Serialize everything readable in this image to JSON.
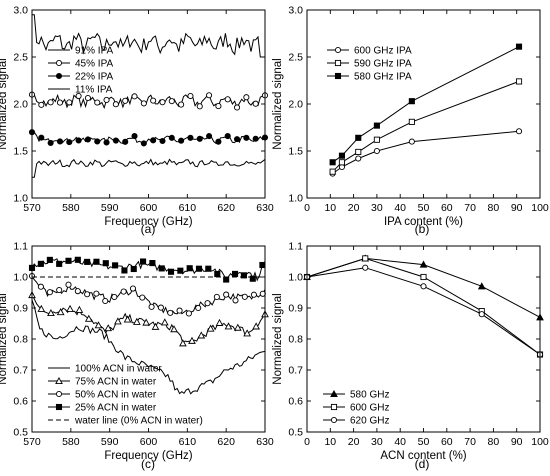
{
  "chart_data": [
    {
      "type": "line",
      "panel_label": "(a)",
      "xlabel": "Frequency (GHz)",
      "ylabel": "Normalized signal",
      "xlim": [
        570,
        630
      ],
      "ylim": [
        1.0,
        3.0
      ],
      "xticks": [
        570,
        580,
        590,
        600,
        610,
        620,
        630
      ],
      "yticks": [
        1.0,
        1.5,
        2.0,
        2.5,
        3.0
      ],
      "yticklabels": [
        "1.0",
        "1.5",
        "2.0",
        "2.5",
        "3.0"
      ],
      "legend_position": "top-left",
      "series": [
        {
          "name": "91% IPA",
          "marker": "none",
          "base": 2.65,
          "amp": 0.09,
          "start_y": 2.95,
          "end_drop": 0.15
        },
        {
          "name": "45% IPA",
          "marker": "open-circle",
          "base": 2.03,
          "amp": 0.05,
          "start_y": 2.1
        },
        {
          "name": "22% IPA",
          "marker": "filled-circle",
          "base": 1.62,
          "amp": 0.03,
          "start_y": 1.7
        },
        {
          "name": "11% IPA",
          "marker": "none",
          "base": 1.37,
          "amp": 0.03,
          "start_y": 1.22
        }
      ]
    },
    {
      "type": "line",
      "panel_label": "(b)",
      "xlabel": "IPA content (%)",
      "ylabel": "Normalized signal",
      "xlim": [
        0,
        100
      ],
      "ylim": [
        1.0,
        3.0
      ],
      "xticks": [
        0,
        10,
        20,
        30,
        40,
        50,
        60,
        70,
        80,
        90,
        100
      ],
      "yticks": [
        1.0,
        1.5,
        2.0,
        2.5,
        3.0
      ],
      "yticklabels": [
        "1.0",
        "1.5",
        "2.0",
        "2.5",
        "3.0"
      ],
      "legend_position": "top-left",
      "x": [
        11,
        15,
        22,
        30,
        45,
        91
      ],
      "series": [
        {
          "name": "600 GHz IPA",
          "marker": "open-circle",
          "values": [
            1.26,
            1.33,
            1.42,
            1.5,
            1.6,
            1.71
          ]
        },
        {
          "name": "590 GHz IPA",
          "marker": "open-square",
          "values": [
            1.28,
            1.38,
            1.49,
            1.62,
            1.81,
            2.24
          ]
        },
        {
          "name": "580 GHz IPA",
          "marker": "filled-square",
          "values": [
            1.38,
            1.45,
            1.64,
            1.77,
            2.03,
            2.61
          ]
        }
      ]
    },
    {
      "type": "line",
      "panel_label": "(c)",
      "xlabel": "Frequency (GHz)",
      "ylabel": "Normalized signal",
      "xlim": [
        570,
        630
      ],
      "ylim": [
        0.5,
        1.1
      ],
      "xticks": [
        570,
        580,
        590,
        600,
        610,
        620,
        630
      ],
      "yticks": [
        0.5,
        0.6,
        0.7,
        0.8,
        0.9,
        1.0,
        1.1
      ],
      "yticklabels": [
        "0.5",
        "0.6",
        "0.7",
        "0.8",
        "0.9",
        "1.0",
        "1.1"
      ],
      "legend_position": "bottom-left",
      "series": [
        {
          "name": "100% ACN in water",
          "marker": "none",
          "points": [
            [
              570,
              0.92
            ],
            [
              572,
              0.83
            ],
            [
              576,
              0.8
            ],
            [
              582,
              0.84
            ],
            [
              588,
              0.82
            ],
            [
              594,
              0.74
            ],
            [
              600,
              0.71
            ],
            [
              605,
              0.68
            ],
            [
              608,
              0.62
            ],
            [
              612,
              0.64
            ],
            [
              616,
              0.66
            ],
            [
              620,
              0.7
            ],
            [
              624,
              0.72
            ],
            [
              628,
              0.75
            ],
            [
              630,
              0.76
            ]
          ]
        },
        {
          "name": "75% ACN in water",
          "marker": "open-triangle",
          "points": [
            [
              570,
              0.95
            ],
            [
              573,
              0.88
            ],
            [
              578,
              0.9
            ],
            [
              584,
              0.88
            ],
            [
              589,
              0.82
            ],
            [
              594,
              0.87
            ],
            [
              600,
              0.85
            ],
            [
              606,
              0.84
            ],
            [
              610,
              0.78
            ],
            [
              616,
              0.83
            ],
            [
              620,
              0.85
            ],
            [
              626,
              0.82
            ],
            [
              630,
              0.88
            ]
          ]
        },
        {
          "name": "50% ACN in water",
          "marker": "open-circle",
          "points": [
            [
              570,
              1.0
            ],
            [
              574,
              0.94
            ],
            [
              580,
              0.97
            ],
            [
              586,
              0.94
            ],
            [
              590,
              0.93
            ],
            [
              596,
              0.96
            ],
            [
              602,
              0.9
            ],
            [
              608,
              0.88
            ],
            [
              614,
              0.91
            ],
            [
              620,
              0.94
            ],
            [
              626,
              0.93
            ],
            [
              630,
              0.96
            ]
          ]
        },
        {
          "name": "25% ACN in water",
          "marker": "filled-square",
          "points": [
            [
              570,
              1.04
            ],
            [
              574,
              1.05
            ],
            [
              580,
              1.05
            ],
            [
              586,
              1.04
            ],
            [
              592,
              1.03
            ],
            [
              598,
              1.04
            ],
            [
              604,
              1.03
            ],
            [
              610,
              1.02
            ],
            [
              616,
              1.03
            ],
            [
              620,
              1.0
            ],
            [
              624,
              1.02
            ],
            [
              628,
              1.0
            ],
            [
              630,
              1.05
            ]
          ]
        },
        {
          "name": "water line (0% ACN in water)",
          "marker": "dashed",
          "points": [
            [
              570,
              1.0
            ],
            [
              630,
              1.0
            ]
          ]
        }
      ]
    },
    {
      "type": "line",
      "panel_label": "(d)",
      "xlabel": "ACN content (%)",
      "ylabel": "Normalized signal",
      "xlim": [
        0,
        100
      ],
      "ylim": [
        0.5,
        1.1
      ],
      "xticks": [
        0,
        10,
        20,
        30,
        40,
        50,
        60,
        70,
        80,
        90,
        100
      ],
      "yticks": [
        0.5,
        0.6,
        0.7,
        0.8,
        0.9,
        1.0,
        1.1
      ],
      "yticklabels": [
        "0.5",
        "0.6",
        "0.7",
        "0.8",
        "0.9",
        "1.0",
        "1.1"
      ],
      "legend_position": "bottom-left",
      "x": [
        0,
        25,
        50,
        75,
        100
      ],
      "series": [
        {
          "name": "580 GHz",
          "marker": "filled-triangle",
          "values": [
            1.0,
            1.06,
            1.04,
            0.97,
            0.87
          ]
        },
        {
          "name": "600 GHz",
          "marker": "open-square",
          "values": [
            1.0,
            1.06,
            1.0,
            0.89,
            0.75
          ]
        },
        {
          "name": "620 GHz",
          "marker": "open-circle",
          "values": [
            1.0,
            1.03,
            0.97,
            0.88,
            0.75
          ]
        }
      ]
    }
  ]
}
